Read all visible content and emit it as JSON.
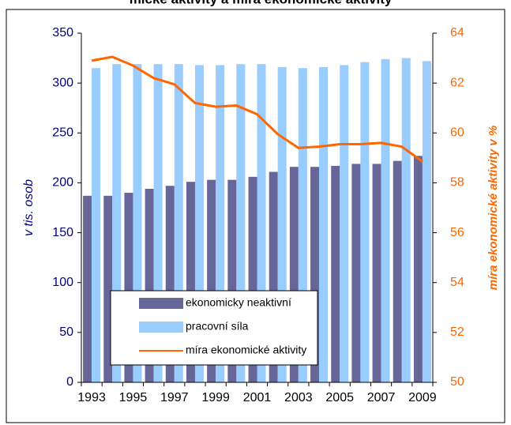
{
  "chart_data": {
    "type": "bar_line",
    "title": "mické aktivity a míra ekonomické aktivity",
    "ylabel": "v tis. osob",
    "y2label": "míra ekonomické aktivity v %",
    "categories": [
      "1993",
      null,
      "1995",
      null,
      "1997",
      null,
      "1999",
      null,
      "2001",
      null,
      "2003",
      null,
      "2005",
      null,
      "2007",
      null,
      "2009"
    ],
    "series": [
      {
        "name": "ekonomicky neaktivní",
        "color": "#666699",
        "values": [
          187,
          187,
          190,
          194,
          197,
          201,
          203,
          203,
          206,
          211,
          216,
          216,
          217,
          219,
          219,
          222,
          227
        ]
      },
      {
        "name": "pracovní síla",
        "color": "#99ccff",
        "values": [
          315,
          319,
          319,
          319,
          319,
          318,
          318,
          319,
          319,
          316,
          315,
          316,
          318,
          321,
          324,
          325,
          322
        ]
      },
      {
        "name": "míra ekonomické aktivity",
        "color": "#ff6600",
        "axis": "y2",
        "values": [
          62.9,
          63.05,
          62.7,
          62.2,
          61.95,
          61.2,
          61.05,
          61.1,
          60.75,
          59.95,
          59.4,
          59.45,
          59.55,
          59.55,
          59.6,
          59.45,
          58.85
        ]
      }
    ],
    "ylim": [
      0,
      350
    ],
    "yticks": [
      0,
      50,
      100,
      150,
      200,
      250,
      300,
      350
    ],
    "y2lim": [
      50,
      64
    ],
    "y2ticks": [
      50,
      52,
      54,
      56,
      58,
      60,
      62,
      64
    ]
  }
}
